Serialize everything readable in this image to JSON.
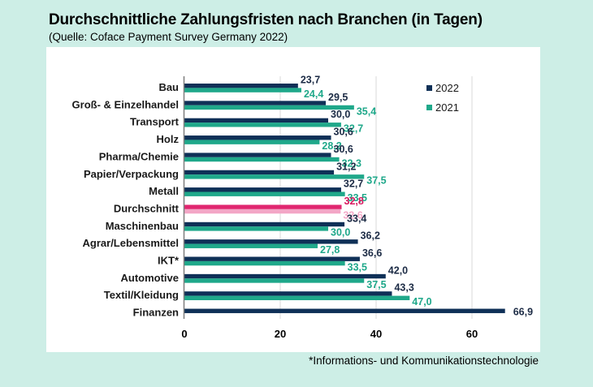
{
  "chart_data": {
    "type": "bar",
    "orientation": "horizontal",
    "title": "Durchschnittliche Zahlungsfristen nach Branchen (in Tagen)",
    "subtitle": "(Quelle: Coface Payment Survey Germany 2022)",
    "footnote": "*Informations- und Kommunikationstechnologie",
    "xlabel": "",
    "ylabel": "",
    "xlim": [
      0,
      70
    ],
    "x_ticks": [
      0,
      20,
      40,
      60
    ],
    "x_tick_labels": [
      "0",
      "20",
      "40",
      "60"
    ],
    "grid": true,
    "legend_position": "top-right",
    "categories": [
      "Bau",
      "Groß- & Einzelhandel",
      "Transport",
      "Holz",
      "Pharma/Chemie",
      "Papier/Verpackung",
      "Metall",
      "Durchschnitt",
      "Maschinenbau",
      "Agrar/Lebensmittel",
      "IKT*",
      "Automotive",
      "Textil/Kleidung",
      "Finanzen"
    ],
    "series": [
      {
        "name": "2022",
        "color": "#0f3057",
        "highlight_color": "#e0266f",
        "values": [
          23.7,
          29.5,
          30.0,
          30.6,
          30.6,
          31.2,
          32.7,
          32.8,
          33.4,
          36.2,
          36.6,
          42.0,
          43.3,
          66.9
        ],
        "labels": [
          "23,7",
          "29,5",
          "30,0",
          "30,6",
          "30,6",
          "31,2",
          "32,7",
          "32,8",
          "33,4",
          "36,2",
          "36,6",
          "42,0",
          "43,3",
          "66,9"
        ]
      },
      {
        "name": "2021",
        "color": "#1fa88a",
        "highlight_color": "#f3a6c6",
        "values": [
          24.4,
          35.4,
          32.7,
          28.2,
          32.3,
          37.5,
          33.5,
          32.6,
          30.0,
          27.8,
          33.5,
          37.5,
          47.0,
          null
        ],
        "labels": [
          "24,4",
          "35,4",
          "32,7",
          "28,2",
          "32,3",
          "37,5",
          "33,5",
          "32,6",
          "30,0",
          "27,8",
          "33,5",
          "37,5",
          "47,0",
          ""
        ]
      }
    ],
    "highlight_category": "Durchschnitt",
    "label_colors": {
      "2022": "#1c2b45",
      "2021": "#1fa88a",
      "2022_highlight": "#d81b60",
      "2021_highlight": "#f4a9c8"
    }
  }
}
